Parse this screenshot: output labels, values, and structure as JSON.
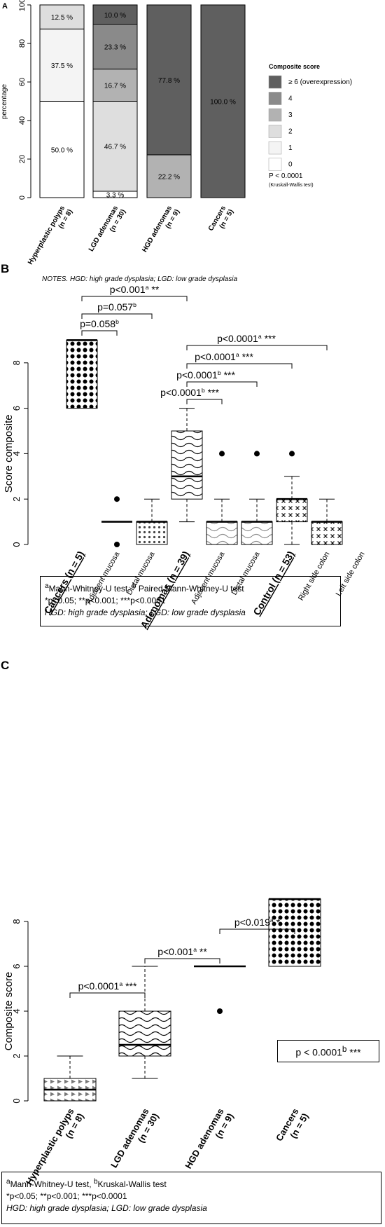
{
  "chart_data": [
    {
      "panel": "A",
      "type": "bar",
      "ylabel": "percentage",
      "ylim": [
        0,
        100
      ],
      "yticks": [
        "0",
        "20",
        "40",
        "60",
        "80",
        "100"
      ],
      "categories": [
        "Hyperplastic polyps (n = 8)",
        "LGD adenomas (n = 30)",
        "HGD adenomas (n = 9)",
        "Cancers (n = 5)"
      ],
      "cat_lines": [
        [
          "Hyperplastic polyps",
          "(n = 8)"
        ],
        [
          "LGD adenomas",
          "(n = 30)"
        ],
        [
          "HGD adenomas",
          "(n = 9)"
        ],
        [
          "Cancers",
          "(n = 5)"
        ]
      ],
      "series": [
        {
          "name": "0",
          "color": "#ffffff",
          "values": [
            50.0,
            3.3,
            0,
            0
          ]
        },
        {
          "name": "1",
          "color": "#f4f4f4",
          "values": [
            37.5,
            0,
            0,
            0
          ]
        },
        {
          "name": "2",
          "color": "#dedede",
          "values": [
            12.5,
            46.7,
            0,
            0
          ]
        },
        {
          "name": "3",
          "color": "#b2b2b2",
          "values": [
            0,
            16.7,
            22.2,
            0
          ]
        },
        {
          "name": "4",
          "color": "#8a8a8a",
          "values": [
            0,
            23.3,
            0,
            0
          ]
        },
        {
          "name": "≥ 6 (overexpression)",
          "color": "#5f5f5f",
          "values": [
            0,
            10.0,
            77.8,
            100.0
          ]
        }
      ],
      "labels": [
        [
          "50.0 %",
          "37.5 %",
          "12.5 %"
        ],
        [
          "3.3 %",
          "46.7 %",
          "16.7 %",
          "23.3 %",
          "10.0 %"
        ],
        [
          "22.2 %",
          "77.8 %"
        ],
        [
          "100.0 %"
        ]
      ],
      "legend_title": "Composite score",
      "legend_position": "right",
      "pvalue": "P < 0.0001",
      "pvalue_test": "(Kruskall-Wallis test)",
      "notes": "NOTES. HGD: high grade dysplasia; LGD: low grade dysplasia"
    },
    {
      "panel": "B",
      "type": "boxplot",
      "ylabel": "Score composite",
      "ylim": [
        0,
        9
      ],
      "yticks": [
        "0",
        "2",
        "4",
        "6",
        "8"
      ],
      "categories": [
        "Cancers (n = 5)",
        "Adjacent mucosa",
        "Distal mucosa",
        "Adenomas (n = 39)",
        "Adjacent mucosa",
        "Distal mucosa",
        "Control (n = 53)",
        "Right side colon",
        "Left side colon"
      ],
      "boxes": [
        {
          "x": 1,
          "q1": 6,
          "median": 9,
          "q3": 9,
          "wlo": 6,
          "whi": 9,
          "outliers": [],
          "fill": "dots"
        },
        {
          "x": 2,
          "q1": 1,
          "median": 1,
          "q3": 1,
          "wlo": 1,
          "whi": 1,
          "outliers": [
            0,
            2
          ],
          "fill": "none"
        },
        {
          "x": 3,
          "q1": 0,
          "median": 1,
          "q3": 1,
          "wlo": 0,
          "whi": 2,
          "outliers": [],
          "fill": "smalldots"
        },
        {
          "x": 4,
          "q1": 2,
          "median": 3,
          "q3": 5,
          "wlo": 1,
          "whi": 6,
          "outliers": [],
          "fill": "waves"
        },
        {
          "x": 5,
          "q1": 0,
          "median": 1,
          "q3": 1,
          "wlo": 0,
          "whi": 2,
          "outliers": [
            4
          ],
          "fill": "greywaves"
        },
        {
          "x": 6,
          "q1": 0,
          "median": 1,
          "q3": 1,
          "wlo": 0,
          "whi": 2,
          "outliers": [
            4
          ],
          "fill": "greywaves"
        },
        {
          "x": 7,
          "q1": 1,
          "median": 2,
          "q3": 2,
          "wlo": 0,
          "whi": 3,
          "outliers": [
            4
          ],
          "fill": "crosses"
        },
        {
          "x": 8,
          "q1": 0,
          "median": 1,
          "q3": 1,
          "wlo": 0,
          "whi": 2,
          "outliers": [],
          "fill": "crosses"
        }
      ],
      "brackets": [
        {
          "from": 1,
          "to": 2,
          "label": "p=0.058",
          "sup": "b",
          "stars": ""
        },
        {
          "from": 1,
          "to": 3,
          "label": "p=0.057",
          "sup": "b",
          "stars": ""
        },
        {
          "from": 1,
          "to": 4,
          "label": "p<0.001",
          "sup": "a",
          "stars": "**"
        },
        {
          "from": 4,
          "to": 5,
          "label": "p<0.0001",
          "sup": "b",
          "stars": "***"
        },
        {
          "from": 4,
          "to": 6,
          "label": "p<0.0001",
          "sup": "b",
          "stars": "***"
        },
        {
          "from": 4,
          "to": 7,
          "label": "p<0.0001",
          "sup": "a",
          "stars": "***"
        },
        {
          "from": 4,
          "to": 8,
          "label": "p<0.0001",
          "sup": "a",
          "stars": "***"
        }
      ],
      "footnote_a": "Mann-Whitney-U test, ",
      "footnote_b": " Paired Mann-Whitney-U test",
      "footnote_sig": "*p<0.05; **p<0.001; ***p<0.0001",
      "footnote_abbr": "HGD: high grade dysplasia; LGD: low grade dysplasia"
    },
    {
      "panel": "C",
      "type": "boxplot",
      "ylabel": "Composite score",
      "ylim": [
        0,
        9
      ],
      "yticks": [
        "0",
        "2",
        "4",
        "6",
        "8"
      ],
      "categories": [
        "Hyperplastic polyps (n = 8)",
        "LGD adenomas (n = 30)",
        "HGD adenomas (n = 9)",
        "Cancers (n = 5)"
      ],
      "cat_lines": [
        [
          "Hyperplastic polyps",
          "(n = 8)"
        ],
        [
          "LGD adenomas",
          "(n = 30)"
        ],
        [
          "HGD adenomas",
          "(n = 9)"
        ],
        [
          "Cancers",
          "(n = 5)"
        ]
      ],
      "boxes": [
        {
          "x": 1,
          "q1": 0,
          "median": 0.5,
          "q3": 1,
          "wlo": 0,
          "whi": 2,
          "outliers": [],
          "fill": "triangles"
        },
        {
          "x": 2,
          "q1": 2,
          "median": 2.5,
          "q3": 4,
          "wlo": 1,
          "whi": 6,
          "outliers": [],
          "fill": "waves"
        },
        {
          "x": 3,
          "q1": 6,
          "median": 6,
          "q3": 6,
          "wlo": 6,
          "whi": 6,
          "outliers": [
            4
          ],
          "fill": "none"
        },
        {
          "x": 4,
          "q1": 6,
          "median": 9,
          "q3": 9,
          "wlo": 6,
          "whi": 9,
          "outliers": [],
          "fill": "dots"
        }
      ],
      "brackets": [
        {
          "from": 1,
          "to": 2,
          "label": "p<0.0001",
          "sup": "a",
          "stars": "***"
        },
        {
          "from": 2,
          "to": 3,
          "label": "p<0.001",
          "sup": "a",
          "stars": "**"
        },
        {
          "from": 3,
          "to": 4,
          "label": "p<0.019",
          "sup": "a",
          "stars": "*"
        }
      ],
      "overall": {
        "label": "p < 0.0001",
        "sup": "b",
        "stars": "***"
      },
      "footnote_a": "Mann-Whitney-U test, ",
      "footnote_b": "Kruskal-Wallis test",
      "footnote_sig": "*p<0.05; **p<0.001; ***p<0.0001",
      "footnote_abbr": "HGD: high grade dysplasia; LGD: low grade dysplasia"
    }
  ],
  "panels": {
    "a": "A",
    "b": "B",
    "c": "C"
  }
}
